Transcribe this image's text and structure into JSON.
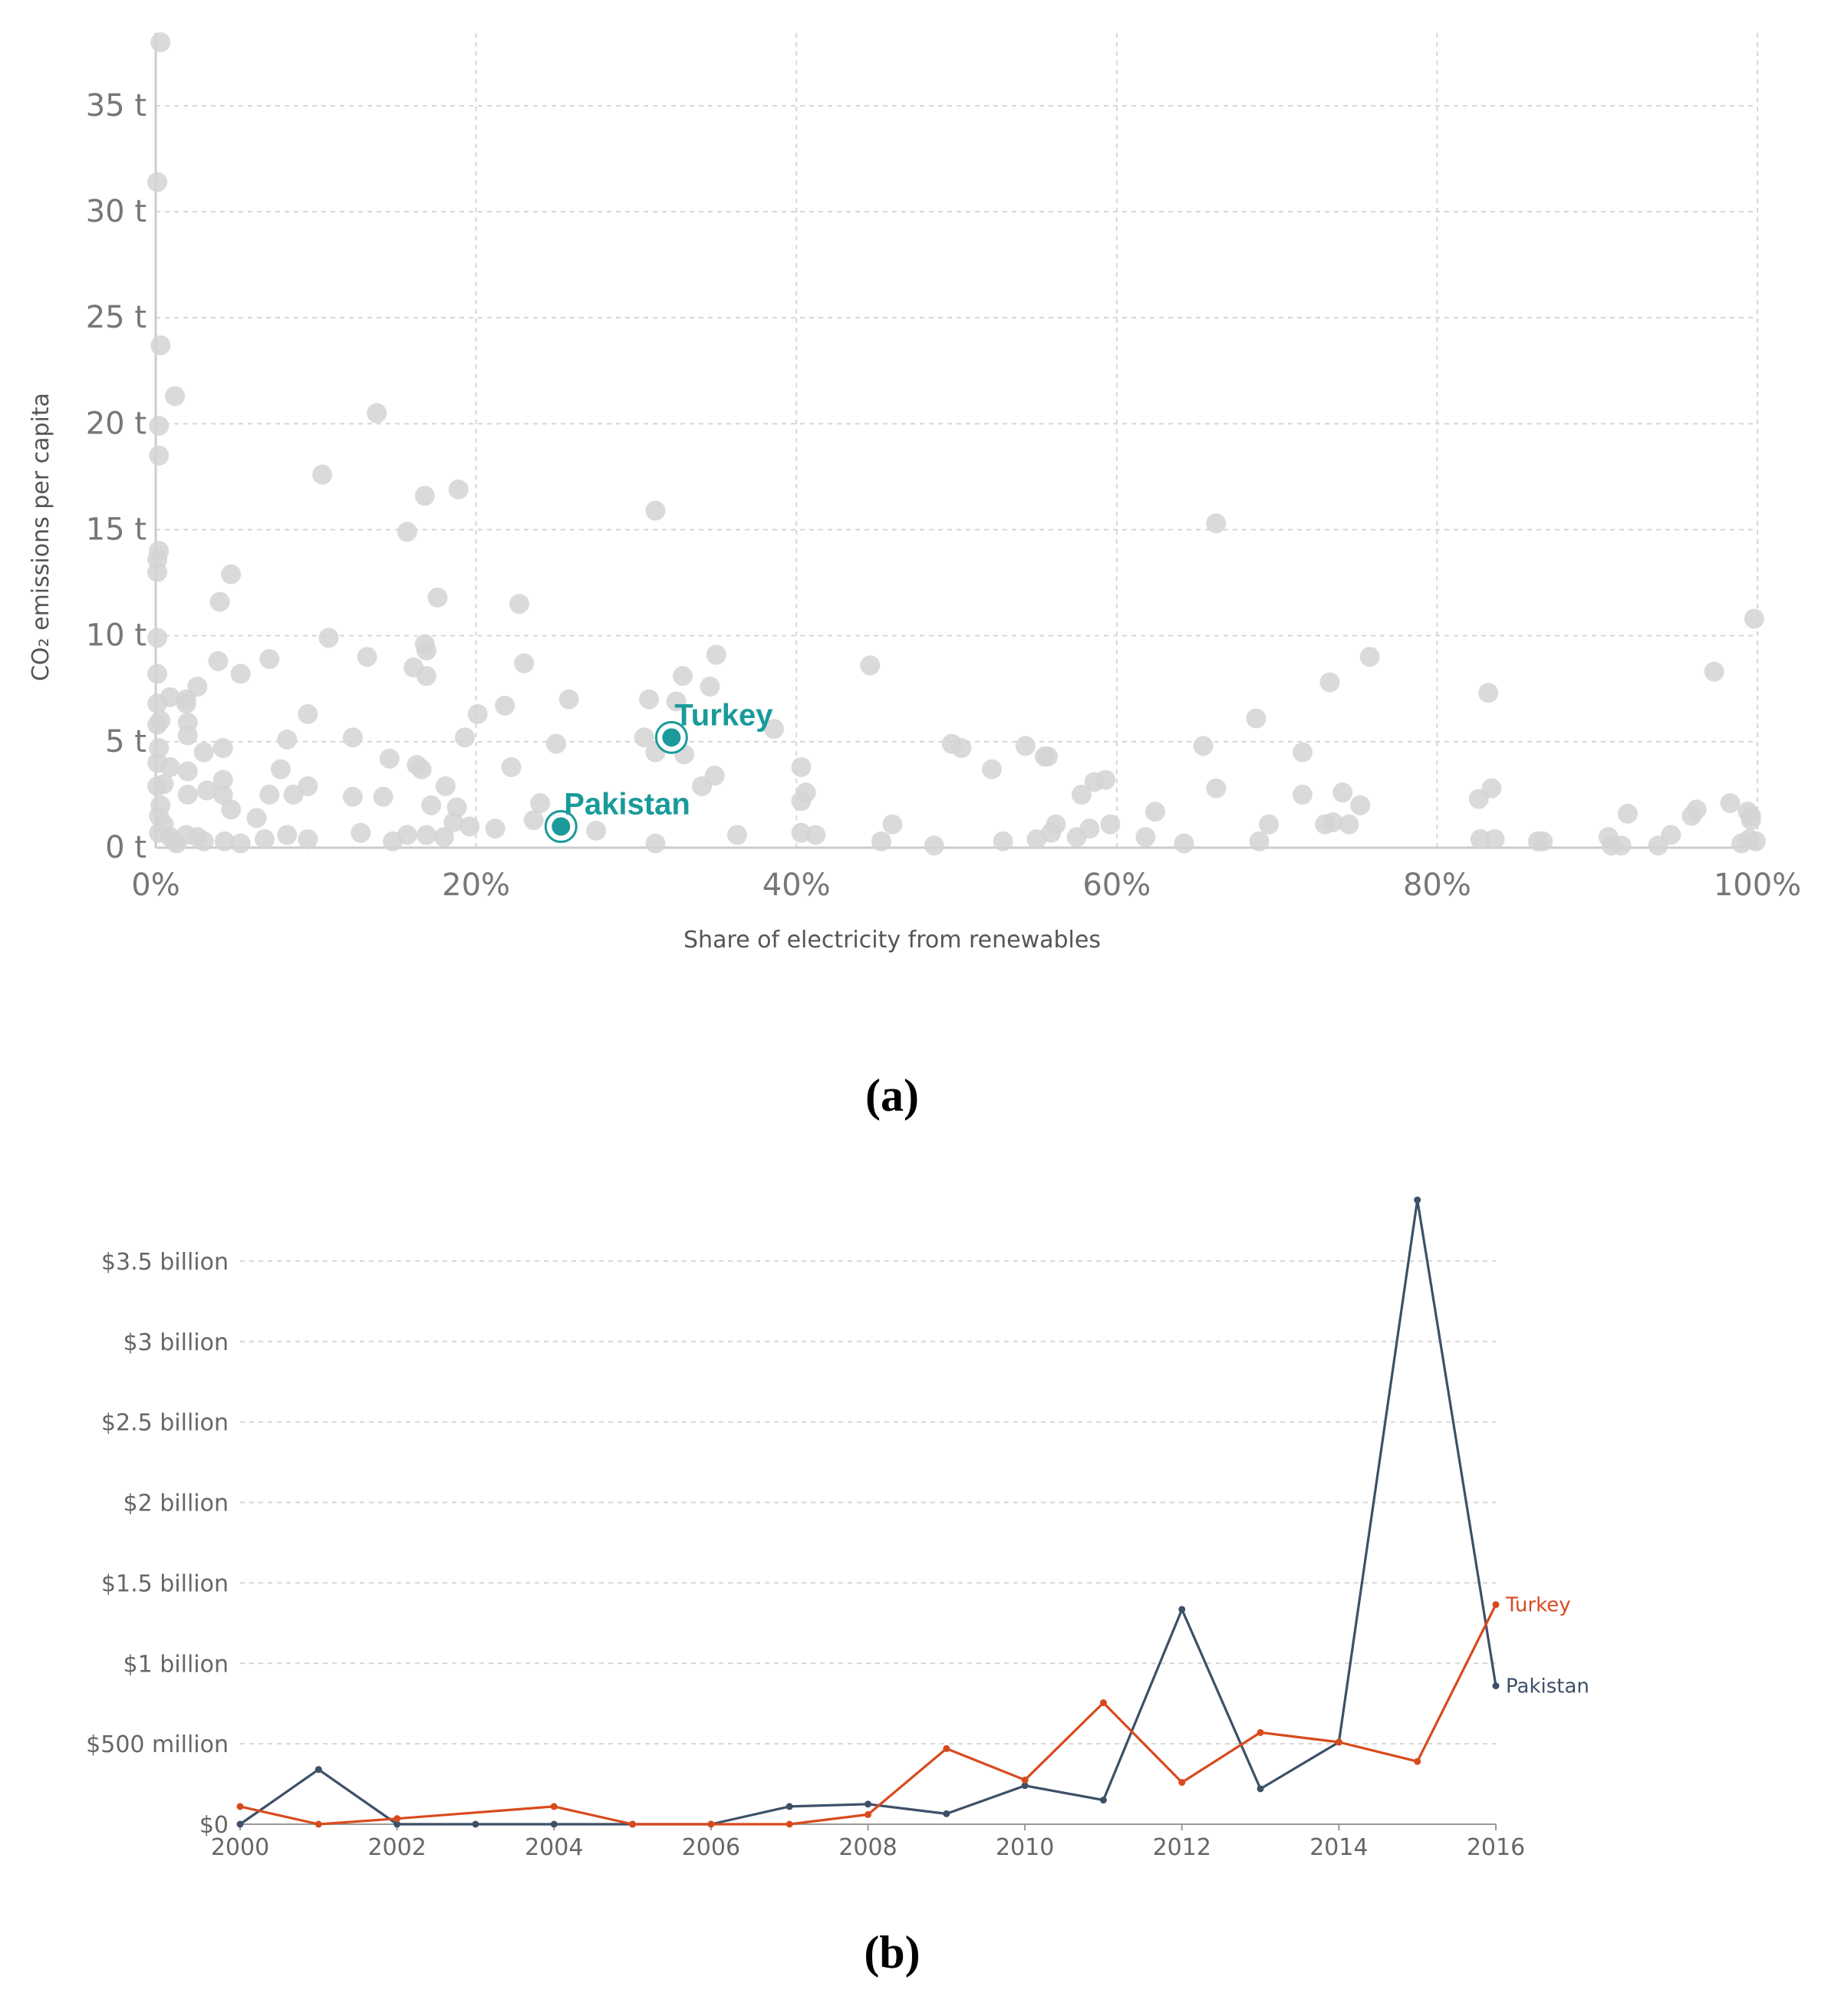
{
  "panel_a_caption": "(a)",
  "panel_b_caption": "(b)",
  "colors": {
    "background_points": "#d4d4d4",
    "highlight": "#1a9a9a",
    "pakistan_line": "#3d5068",
    "turkey_line": "#d84a1e",
    "grid": "#d6d6d6",
    "tick_text": "#777777"
  },
  "chart_data": [
    {
      "type": "scatter",
      "title": "",
      "xlabel": "Share of electricity from renewables",
      "ylabel": "CO₂ emissions per capita",
      "xlim": [
        0,
        100
      ],
      "ylim": [
        0,
        38
      ],
      "x_ticks": [
        0,
        20,
        40,
        60,
        80,
        100
      ],
      "x_tick_labels": [
        "0%",
        "20%",
        "40%",
        "60%",
        "80%",
        "100%"
      ],
      "y_ticks": [
        0,
        5,
        10,
        15,
        20,
        25,
        30,
        35
      ],
      "y_tick_labels": [
        "0 t",
        "5 t",
        "10 t",
        "15 t",
        "20 t",
        "25 t",
        "30 t",
        "35 t"
      ],
      "grid": true,
      "highlighted": [
        {
          "name": "Turkey",
          "x": 32.2,
          "y": 5.2
        },
        {
          "name": "Pakistan",
          "x": 25.3,
          "y": 1.0
        }
      ],
      "points": [
        [
          0.3,
          38.0
        ],
        [
          0.1,
          31.4
        ],
        [
          0.3,
          23.7
        ],
        [
          1.2,
          21.3
        ],
        [
          0.2,
          19.9
        ],
        [
          0.2,
          18.5
        ],
        [
          0.2,
          14.0
        ],
        [
          0.1,
          13.6
        ],
        [
          0.1,
          13.0
        ],
        [
          0.1,
          9.9
        ],
        [
          0.1,
          8.2
        ],
        [
          0.1,
          6.8
        ],
        [
          0.3,
          6.0
        ],
        [
          0.1,
          5.8
        ],
        [
          0.2,
          4.7
        ],
        [
          0.1,
          4.0
        ],
        [
          0.5,
          3.0
        ],
        [
          0.1,
          2.9
        ],
        [
          0.3,
          2.0
        ],
        [
          0.2,
          1.5
        ],
        [
          0.5,
          1.1
        ],
        [
          0.2,
          0.7
        ],
        [
          0.9,
          0.5
        ],
        [
          1.2,
          0.3
        ],
        [
          0.9,
          7.1
        ],
        [
          0.9,
          3.8
        ],
        [
          1.3,
          0.2
        ],
        [
          1.9,
          7.0
        ],
        [
          1.9,
          6.8
        ],
        [
          2.0,
          5.9
        ],
        [
          2.0,
          5.3
        ],
        [
          2.0,
          3.6
        ],
        [
          2.0,
          2.5
        ],
        [
          1.9,
          0.6
        ],
        [
          2.6,
          0.5
        ],
        [
          2.6,
          7.6
        ],
        [
          3.0,
          4.5
        ],
        [
          3.2,
          2.7
        ],
        [
          3.0,
          0.3
        ],
        [
          4.0,
          11.6
        ],
        [
          3.9,
          8.8
        ],
        [
          4.2,
          4.7
        ],
        [
          4.2,
          3.2
        ],
        [
          4.2,
          2.5
        ],
        [
          4.3,
          0.3
        ],
        [
          4.7,
          12.9
        ],
        [
          5.3,
          8.2
        ],
        [
          4.7,
          1.8
        ],
        [
          5.3,
          0.2
        ],
        [
          6.3,
          1.4
        ],
        [
          6.8,
          0.4
        ],
        [
          7.1,
          8.9
        ],
        [
          7.1,
          2.5
        ],
        [
          7.8,
          3.7
        ],
        [
          8.2,
          5.1
        ],
        [
          8.2,
          0.6
        ],
        [
          8.6,
          2.5
        ],
        [
          9.5,
          6.3
        ],
        [
          9.5,
          2.9
        ],
        [
          9.5,
          0.4
        ],
        [
          10.4,
          17.6
        ],
        [
          10.8,
          9.9
        ],
        [
          12.3,
          5.2
        ],
        [
          12.3,
          2.4
        ],
        [
          12.8,
          0.7
        ],
        [
          13.2,
          9.0
        ],
        [
          13.8,
          20.5
        ],
        [
          14.2,
          2.4
        ],
        [
          14.6,
          4.2
        ],
        [
          14.8,
          0.3
        ],
        [
          15.7,
          14.9
        ],
        [
          15.7,
          0.6
        ],
        [
          16.1,
          8.5
        ],
        [
          16.3,
          3.9
        ],
        [
          16.6,
          3.7
        ],
        [
          16.8,
          9.6
        ],
        [
          16.8,
          16.6
        ],
        [
          16.9,
          9.3
        ],
        [
          16.9,
          8.1
        ],
        [
          16.9,
          0.6
        ],
        [
          17.2,
          2.0
        ],
        [
          17.6,
          11.8
        ],
        [
          18.0,
          0.5
        ],
        [
          18.1,
          2.9
        ],
        [
          18.6,
          1.2
        ],
        [
          18.8,
          1.9
        ],
        [
          18.9,
          16.9
        ],
        [
          19.3,
          5.2
        ],
        [
          19.6,
          1.0
        ],
        [
          20.1,
          6.3
        ],
        [
          21.2,
          0.9
        ],
        [
          21.8,
          6.7
        ],
        [
          22.2,
          3.8
        ],
        [
          22.7,
          11.5
        ],
        [
          23.0,
          8.7
        ],
        [
          23.6,
          1.3
        ],
        [
          24.0,
          2.1
        ],
        [
          25.0,
          4.9
        ],
        [
          25.8,
          7.0
        ],
        [
          27.5,
          0.8
        ],
        [
          30.5,
          5.2
        ],
        [
          30.8,
          7.0
        ],
        [
          31.2,
          15.9
        ],
        [
          31.2,
          4.5
        ],
        [
          31.2,
          0.2
        ],
        [
          32.5,
          6.9
        ],
        [
          32.9,
          8.1
        ],
        [
          33.0,
          4.4
        ],
        [
          34.1,
          2.9
        ],
        [
          34.6,
          7.6
        ],
        [
          34.9,
          3.4
        ],
        [
          35.0,
          9.1
        ],
        [
          36.3,
          0.6
        ],
        [
          38.6,
          5.6
        ],
        [
          40.3,
          3.8
        ],
        [
          40.3,
          2.2
        ],
        [
          40.6,
          2.6
        ],
        [
          40.3,
          0.7
        ],
        [
          41.2,
          0.6
        ],
        [
          44.6,
          8.6
        ],
        [
          45.3,
          0.3
        ],
        [
          46.0,
          1.1
        ],
        [
          48.6,
          0.1
        ],
        [
          49.7,
          4.9
        ],
        [
          50.3,
          4.7
        ],
        [
          52.2,
          3.7
        ],
        [
          52.9,
          0.3
        ],
        [
          54.3,
          4.8
        ],
        [
          55.0,
          0.4
        ],
        [
          55.5,
          4.3
        ],
        [
          55.7,
          4.3
        ],
        [
          55.9,
          0.7
        ],
        [
          56.2,
          1.1
        ],
        [
          57.5,
          0.5
        ],
        [
          57.8,
          2.5
        ],
        [
          58.3,
          0.9
        ],
        [
          58.6,
          3.1
        ],
        [
          59.3,
          3.2
        ],
        [
          59.6,
          1.1
        ],
        [
          61.8,
          0.5
        ],
        [
          62.4,
          1.7
        ],
        [
          64.2,
          0.2
        ],
        [
          65.4,
          4.8
        ],
        [
          66.2,
          15.3
        ],
        [
          66.2,
          2.8
        ],
        [
          68.7,
          6.1
        ],
        [
          68.9,
          0.3
        ],
        [
          69.5,
          1.1
        ],
        [
          71.6,
          2.5
        ],
        [
          71.6,
          4.5
        ],
        [
          73.0,
          1.1
        ],
        [
          73.3,
          7.8
        ],
        [
          73.5,
          1.2
        ],
        [
          74.1,
          2.6
        ],
        [
          74.5,
          1.1
        ],
        [
          75.2,
          2.0
        ],
        [
          75.8,
          9.0
        ],
        [
          82.6,
          2.3
        ],
        [
          82.7,
          0.4
        ],
        [
          83.2,
          7.3
        ],
        [
          83.4,
          2.8
        ],
        [
          83.6,
          0.4
        ],
        [
          86.3,
          0.3
        ],
        [
          86.6,
          0.3
        ],
        [
          90.7,
          0.5
        ],
        [
          90.9,
          0.1
        ],
        [
          91.5,
          0.1
        ],
        [
          91.9,
          1.6
        ],
        [
          93.8,
          0.1
        ],
        [
          94.6,
          0.6
        ],
        [
          95.9,
          1.5
        ],
        [
          96.2,
          1.8
        ],
        [
          97.3,
          8.3
        ],
        [
          98.3,
          2.1
        ],
        [
          99.0,
          0.2
        ],
        [
          99.4,
          1.7
        ],
        [
          99.5,
          0.4
        ],
        [
          99.6,
          1.5
        ],
        [
          99.6,
          1.3
        ],
        [
          99.8,
          10.8
        ],
        [
          99.9,
          0.3
        ]
      ]
    },
    {
      "type": "line",
      "title": "",
      "xlabel": "",
      "ylabel": "",
      "x": [
        2000,
        2001,
        2002,
        2003,
        2004,
        2005,
        2006,
        2007,
        2008,
        2009,
        2010,
        2011,
        2012,
        2013,
        2014,
        2015,
        2016
      ],
      "xlim": [
        2000,
        2016
      ],
      "ylim": [
        0,
        3900
      ],
      "value_unit": "million USD",
      "x_ticks": [
        2000,
        2002,
        2004,
        2006,
        2008,
        2010,
        2012,
        2014,
        2016
      ],
      "x_tick_labels": [
        "2000",
        "2002",
        "2004",
        "2006",
        "2008",
        "2010",
        "2012",
        "2014",
        "2016"
      ],
      "y_ticks": [
        0,
        500,
        1000,
        1500,
        2000,
        2500,
        3000,
        3500
      ],
      "y_tick_labels": [
        "$0",
        "$500 million",
        "$1 billion",
        "$1.5 billion",
        "$2 billion",
        "$2.5 billion",
        "$3 billion",
        "$3.5 billion"
      ],
      "grid": true,
      "series": [
        {
          "name": "Turkey",
          "color": "#d84a1e",
          "x": [
            2000,
            2001,
            2002,
            2004,
            2005,
            2006,
            2007,
            2008,
            2009,
            2010,
            2011,
            2012,
            2013,
            2014,
            2015,
            2016
          ],
          "values": [
            110,
            0,
            35,
            110,
            0,
            0,
            0,
            60,
            470,
            275,
            755,
            260,
            570,
            510,
            390,
            1365
          ]
        },
        {
          "name": "Pakistan",
          "color": "#3d5068",
          "x": [
            2000,
            2001,
            2002,
            2003,
            2004,
            2005,
            2006,
            2007,
            2008,
            2009,
            2010,
            2011,
            2012,
            2013,
            2014,
            2015,
            2016
          ],
          "values": [
            0,
            340,
            0,
            0,
            0,
            0,
            0,
            110,
            125,
            65,
            240,
            150,
            1335,
            220,
            510,
            3880,
            860
          ]
        }
      ]
    }
  ]
}
